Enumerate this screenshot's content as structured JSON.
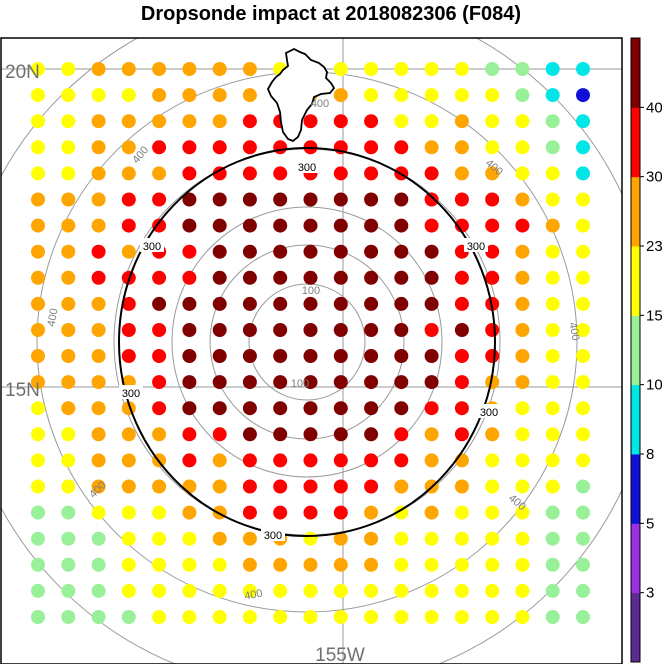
{
  "chart_data": {
    "type": "scatter",
    "title": "Dropsonde impact at 2018082306 (F084)",
    "colorbar": {
      "ticks": [
        "3",
        "5",
        "8",
        "10",
        "15",
        "23",
        "30",
        "40"
      ],
      "colors": [
        "#5b2c8f",
        "#9b30e0",
        "#1010d8",
        "#00e5e5",
        "#98f098",
        "#ffff00",
        "#ffa500",
        "#ff0000",
        "#800000"
      ]
    },
    "level_key": "0 = level below 3 (purple) ... 8 = level above 40 (dark red); grid rows listed north to south, columns west to east",
    "grid": [
      "5566666655555554433",
      "5555666656655555432",
      "5566666777775565543",
      "5566777777777665543",
      "5566677777777766553",
      "6667788888888777655",
      "6667788888888777765",
      "6676778888888877655",
      "6677778888888877655",
      "6667888888888877655",
      "6667788888888787655",
      "6667788888888877655",
      "6666788888888876655",
      "5666788888888776555",
      "5566677888887676555",
      "5566676777777665555",
      "5566666777776665554",
      "4455566777765655544",
      "4445556665665555544",
      "4445555666665555544",
      "4445555555555555544",
      "4444555555555555544"
    ],
    "lat_labels": [
      "20N",
      "15N"
    ],
    "lon_labels": [
      "155W"
    ],
    "range_rings": [
      "100",
      "100",
      "400",
      "400",
      "400",
      "400",
      "400",
      "400",
      "400",
      "400"
    ],
    "contour_labels": [
      "300",
      "300",
      "300",
      "300",
      "300",
      "300"
    ]
  }
}
